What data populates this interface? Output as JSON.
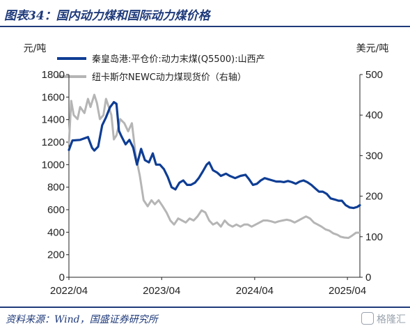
{
  "header": {
    "title": "图表34：国内动力煤和国际动力煤价格"
  },
  "footer": {
    "source": "资料来源：Wind，国盛证券研究所",
    "watermark": "格隆汇"
  },
  "chart_data": {
    "type": "line",
    "y_left_unit": "元/吨",
    "y_right_unit": "美元/吨",
    "y_left_ticks": [
      "0",
      "200",
      "400",
      "600",
      "800",
      "1000",
      "1200",
      "1400",
      "1600",
      "1800"
    ],
    "y_right_ticks": [
      "0",
      "100",
      "200",
      "300",
      "400",
      "500"
    ],
    "x_ticks": [
      "2022/04",
      "2023/04",
      "2024/04",
      "2025/04"
    ],
    "ylim_left": [
      0,
      1800
    ],
    "ylim_right": [
      0,
      500
    ],
    "xlim": [
      "2022-04-01",
      "2025-05-20"
    ],
    "grid": false,
    "legend_position": "top",
    "series": [
      {
        "name": "秦皇岛港:平仓价:动力末煤(Q5500):山西产",
        "axis": "left",
        "color": "#0e3d94",
        "points": [
          [
            "2022-04-01",
            1130
          ],
          [
            "2022-04-15",
            1215
          ],
          [
            "2022-05-15",
            1220
          ],
          [
            "2022-06-15",
            1245
          ],
          [
            "2022-07-01",
            1150
          ],
          [
            "2022-07-10",
            1125
          ],
          [
            "2022-07-25",
            1160
          ],
          [
            "2022-08-10",
            1350
          ],
          [
            "2022-08-25",
            1420
          ],
          [
            "2022-09-10",
            1510
          ],
          [
            "2022-09-25",
            1555
          ],
          [
            "2022-10-05",
            1540
          ],
          [
            "2022-10-15",
            1300
          ],
          [
            "2022-10-25",
            1250
          ],
          [
            "2022-11-10",
            1180
          ],
          [
            "2022-11-25",
            1220
          ],
          [
            "2022-12-10",
            1150
          ],
          [
            "2022-12-25",
            1000
          ],
          [
            "2023-01-10",
            1140
          ],
          [
            "2023-01-25",
            1040
          ],
          [
            "2023-02-10",
            1020
          ],
          [
            "2023-02-25",
            1100
          ],
          [
            "2023-03-10",
            1000
          ],
          [
            "2023-03-25",
            1000
          ],
          [
            "2023-04-10",
            960
          ],
          [
            "2023-04-25",
            890
          ],
          [
            "2023-05-10",
            800
          ],
          [
            "2023-05-25",
            780
          ],
          [
            "2023-06-10",
            840
          ],
          [
            "2023-06-25",
            860
          ],
          [
            "2023-07-10",
            820
          ],
          [
            "2023-07-25",
            820
          ],
          [
            "2023-08-10",
            840
          ],
          [
            "2023-08-25",
            880
          ],
          [
            "2023-09-10",
            940
          ],
          [
            "2023-09-25",
            1000
          ],
          [
            "2023-10-05",
            1020
          ],
          [
            "2023-10-20",
            950
          ],
          [
            "2023-11-05",
            930
          ],
          [
            "2023-11-20",
            900
          ],
          [
            "2023-12-10",
            920
          ],
          [
            "2023-12-25",
            900
          ],
          [
            "2024-01-15",
            880
          ],
          [
            "2024-02-05",
            900
          ],
          [
            "2024-02-25",
            910
          ],
          [
            "2024-03-10",
            870
          ],
          [
            "2024-03-25",
            820
          ],
          [
            "2024-04-10",
            830
          ],
          [
            "2024-04-25",
            860
          ],
          [
            "2024-05-10",
            880
          ],
          [
            "2024-05-25",
            870
          ],
          [
            "2024-06-10",
            860
          ],
          [
            "2024-06-25",
            850
          ],
          [
            "2024-07-10",
            850
          ],
          [
            "2024-07-25",
            845
          ],
          [
            "2024-08-10",
            855
          ],
          [
            "2024-08-25",
            845
          ],
          [
            "2024-09-10",
            830
          ],
          [
            "2024-09-25",
            850
          ],
          [
            "2024-10-10",
            860
          ],
          [
            "2024-10-25",
            845
          ],
          [
            "2024-11-10",
            820
          ],
          [
            "2024-11-25",
            790
          ],
          [
            "2024-12-10",
            760
          ],
          [
            "2024-12-25",
            760
          ],
          [
            "2025-01-10",
            740
          ],
          [
            "2025-01-25",
            700
          ],
          [
            "2025-02-10",
            690
          ],
          [
            "2025-02-25",
            680
          ],
          [
            "2025-03-10",
            680
          ],
          [
            "2025-03-25",
            640
          ],
          [
            "2025-04-10",
            620
          ],
          [
            "2025-04-25",
            615
          ],
          [
            "2025-05-10",
            625
          ],
          [
            "2025-05-20",
            640
          ]
        ]
      },
      {
        "name": "纽卡斯尔NEWC动力煤现货价（右轴）",
        "axis": "right",
        "color": "#b5b5b5",
        "points": [
          [
            "2022-04-01",
            330
          ],
          [
            "2022-04-10",
            435
          ],
          [
            "2022-04-20",
            400
          ],
          [
            "2022-05-05",
            390
          ],
          [
            "2022-05-15",
            420
          ],
          [
            "2022-06-01",
            405
          ],
          [
            "2022-06-15",
            440
          ],
          [
            "2022-06-25",
            420
          ],
          [
            "2022-07-10",
            450
          ],
          [
            "2022-07-20",
            430
          ],
          [
            "2022-08-01",
            390
          ],
          [
            "2022-08-15",
            400
          ],
          [
            "2022-08-25",
            440
          ],
          [
            "2022-09-05",
            420
          ],
          [
            "2022-09-15",
            400
          ],
          [
            "2022-09-25",
            340
          ],
          [
            "2022-10-05",
            350
          ],
          [
            "2022-10-20",
            390
          ],
          [
            "2022-11-05",
            380
          ],
          [
            "2022-11-20",
            360
          ],
          [
            "2022-12-05",
            380
          ],
          [
            "2022-12-20",
            300
          ],
          [
            "2023-01-05",
            250
          ],
          [
            "2023-01-20",
            190
          ],
          [
            "2023-02-05",
            175
          ],
          [
            "2023-02-20",
            190
          ],
          [
            "2023-03-05",
            180
          ],
          [
            "2023-03-20",
            190
          ],
          [
            "2023-04-05",
            175
          ],
          [
            "2023-04-20",
            160
          ],
          [
            "2023-05-05",
            140
          ],
          [
            "2023-05-20",
            130
          ],
          [
            "2023-06-05",
            145
          ],
          [
            "2023-06-20",
            140
          ],
          [
            "2023-07-05",
            135
          ],
          [
            "2023-07-20",
            145
          ],
          [
            "2023-08-05",
            140
          ],
          [
            "2023-08-20",
            150
          ],
          [
            "2023-09-05",
            165
          ],
          [
            "2023-09-20",
            160
          ],
          [
            "2023-10-05",
            140
          ],
          [
            "2023-10-20",
            130
          ],
          [
            "2023-11-05",
            135
          ],
          [
            "2023-11-20",
            125
          ],
          [
            "2023-12-05",
            140
          ],
          [
            "2023-12-20",
            130
          ],
          [
            "2024-01-05",
            125
          ],
          [
            "2024-01-20",
            130
          ],
          [
            "2024-02-05",
            125
          ],
          [
            "2024-02-20",
            130
          ],
          [
            "2024-03-05",
            130
          ],
          [
            "2024-03-20",
            125
          ],
          [
            "2024-04-05",
            130
          ],
          [
            "2024-04-20",
            135
          ],
          [
            "2024-05-05",
            140
          ],
          [
            "2024-05-20",
            140
          ],
          [
            "2024-06-05",
            138
          ],
          [
            "2024-06-20",
            135
          ],
          [
            "2024-07-05",
            138
          ],
          [
            "2024-07-20",
            140
          ],
          [
            "2024-08-05",
            142
          ],
          [
            "2024-08-20",
            140
          ],
          [
            "2024-09-05",
            135
          ],
          [
            "2024-09-20",
            140
          ],
          [
            "2024-10-05",
            145
          ],
          [
            "2024-10-20",
            150
          ],
          [
            "2024-11-05",
            145
          ],
          [
            "2024-11-20",
            135
          ],
          [
            "2024-12-05",
            130
          ],
          [
            "2024-12-20",
            125
          ],
          [
            "2025-01-05",
            118
          ],
          [
            "2025-01-20",
            115
          ],
          [
            "2025-02-05",
            108
          ],
          [
            "2025-02-20",
            105
          ],
          [
            "2025-03-05",
            100
          ],
          [
            "2025-03-20",
            98
          ],
          [
            "2025-04-05",
            97
          ],
          [
            "2025-04-20",
            103
          ],
          [
            "2025-05-05",
            110
          ],
          [
            "2025-05-20",
            110
          ]
        ]
      }
    ]
  }
}
